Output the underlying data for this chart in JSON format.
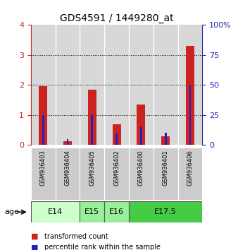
{
  "title": "GDS4591 / 1449280_at",
  "samples": [
    "GSM936403",
    "GSM936404",
    "GSM936405",
    "GSM936402",
    "GSM936400",
    "GSM936401",
    "GSM936406"
  ],
  "transformed_count": [
    1.95,
    0.12,
    1.85,
    0.7,
    1.35,
    0.3,
    3.3
  ],
  "percentile_rank": [
    25.0,
    5.0,
    25.0,
    10.0,
    15.0,
    10.0,
    50.0
  ],
  "age_groups": [
    {
      "label": "E14",
      "start": 0,
      "end": 2,
      "color": "#ccffcc"
    },
    {
      "label": "E15",
      "start": 2,
      "end": 3,
      "color": "#99ee99"
    },
    {
      "label": "E16",
      "start": 3,
      "end": 4,
      "color": "#99ee99"
    },
    {
      "label": "E17.5",
      "start": 4,
      "end": 7,
      "color": "#44cc44"
    }
  ],
  "red_color": "#cc2222",
  "blue_color": "#2222bb",
  "ylim_left": [
    0,
    4
  ],
  "ylim_right": [
    0,
    100
  ],
  "yticks_left": [
    0,
    1,
    2,
    3,
    4
  ],
  "yticks_right": [
    0,
    25,
    50,
    75,
    100
  ],
  "ytick_labels_right": [
    "0",
    "25",
    "50",
    "75",
    "100%"
  ],
  "red_bar_width": 0.35,
  "blue_bar_width": 0.08
}
